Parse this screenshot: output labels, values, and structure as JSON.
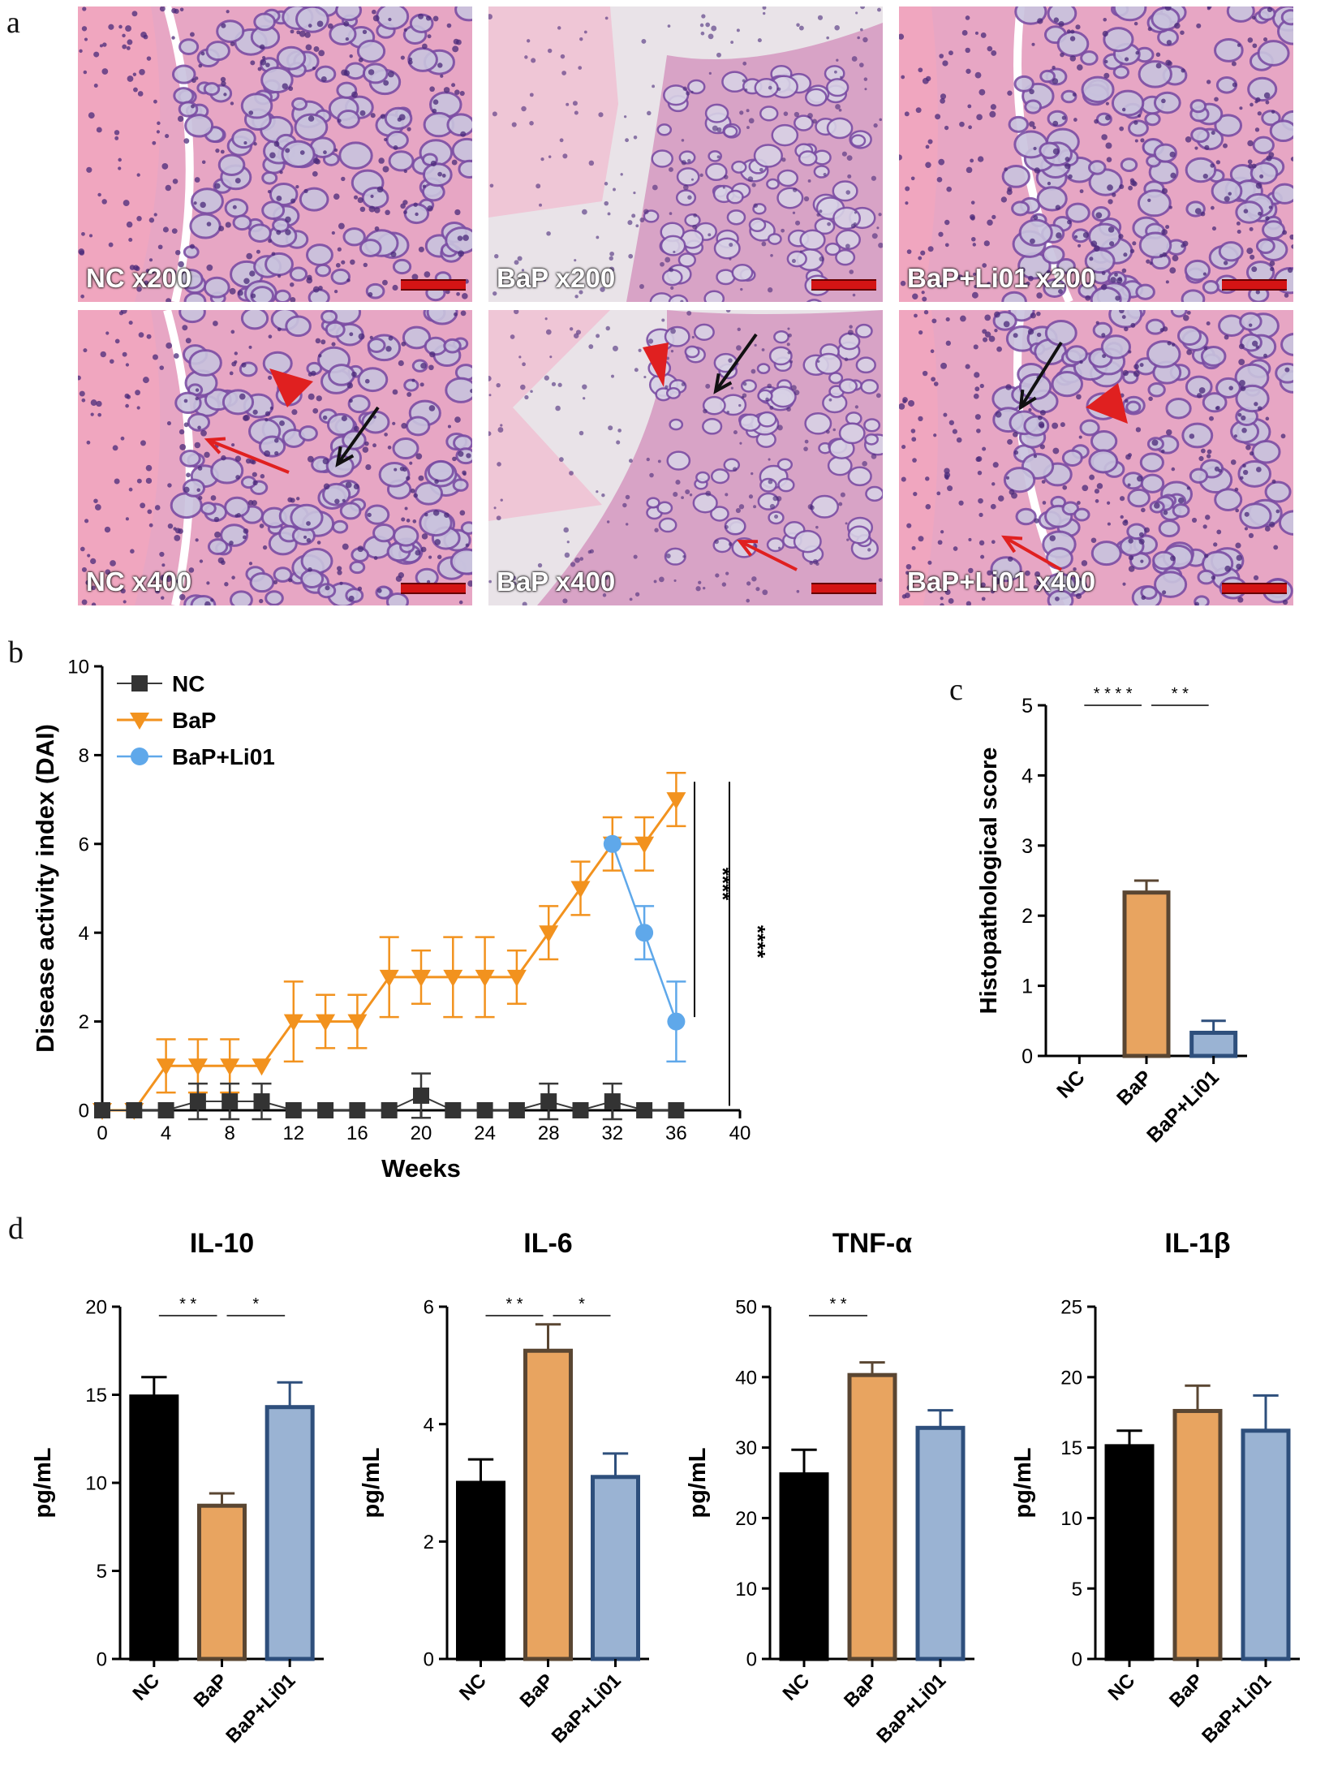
{
  "panel_labels": {
    "a": "a",
    "b": "b",
    "c": "c",
    "d": "d"
  },
  "micrographs": [
    {
      "label": "NC x200",
      "variant": "normal"
    },
    {
      "label": "BaP x200",
      "variant": "damaged"
    },
    {
      "label": "BaP+Li01 x200",
      "variant": "recovered"
    },
    {
      "label": "NC x400",
      "variant": "normal"
    },
    {
      "label": "BaP x400",
      "variant": "damaged"
    },
    {
      "label": "BaP+Li01 x400",
      "variant": "recovered"
    }
  ],
  "colors": {
    "nc": "#000000",
    "nc_line": "#3a3a3a",
    "bap": "#f2921e",
    "bap_bar": "#e8a460",
    "bap_bar_edge": "#5a4632",
    "li01": "#5fa8ea",
    "li01_bar": "#9ab3d3",
    "li01_bar_edge": "#2e4f7c",
    "arrow_red": "#e02020",
    "arrow_black": "#111111"
  },
  "chart_data": [
    {
      "id": "b",
      "type": "line",
      "xlabel": "Weeks",
      "ylabel": "Disease activity index (DAI)",
      "xlim": [
        0,
        40
      ],
      "ylim": [
        0,
        10
      ],
      "xticks": [
        0,
        4,
        8,
        12,
        16,
        20,
        24,
        28,
        32,
        36,
        40
      ],
      "yticks": [
        0,
        2,
        4,
        6,
        8,
        10
      ],
      "legend": "top-left",
      "series": [
        {
          "name": "NC",
          "marker": "square",
          "x": [
            0,
            2,
            4,
            6,
            8,
            10,
            12,
            14,
            16,
            18,
            20,
            22,
            24,
            26,
            28,
            30,
            32,
            34,
            36
          ],
          "y": [
            0,
            0,
            0,
            0.2,
            0.2,
            0.2,
            0,
            0,
            0,
            0,
            0.33,
            0,
            0,
            0,
            0.2,
            0,
            0.2,
            0,
            0
          ],
          "err": [
            0,
            0,
            0,
            0.4,
            0.4,
            0.4,
            0,
            0,
            0,
            0,
            0.5,
            0,
            0,
            0,
            0.4,
            0,
            0.4,
            0,
            0
          ]
        },
        {
          "name": "BaP",
          "marker": "triangle-down",
          "x": [
            0,
            2,
            4,
            6,
            8,
            10,
            12,
            14,
            16,
            18,
            20,
            22,
            24,
            26,
            28,
            30,
            32,
            34,
            36
          ],
          "y": [
            0,
            0,
            1,
            1,
            1,
            1,
            2,
            2,
            2,
            3,
            3,
            3,
            3,
            3,
            4,
            5,
            6,
            6,
            7
          ],
          "err": [
            0,
            0,
            0.6,
            0.6,
            0.6,
            0,
            0.9,
            0.6,
            0.6,
            0.9,
            0.6,
            0.9,
            0.9,
            0.6,
            0.6,
            0.6,
            0.6,
            0.6,
            0.6
          ]
        },
        {
          "name": "BaP+Li01",
          "marker": "circle",
          "x": [
            32,
            34,
            36
          ],
          "y": [
            6,
            4,
            2
          ],
          "err": [
            0,
            0.6,
            0.9
          ]
        }
      ],
      "annotations": [
        "****",
        "****"
      ]
    },
    {
      "id": "c",
      "type": "bar",
      "ylabel": "Histopathological score",
      "categories": [
        "NC",
        "BaP",
        "BaP+Li01"
      ],
      "values": [
        0,
        2.33,
        0.33
      ],
      "err": [
        0,
        0.17,
        0.17
      ],
      "ylim": [
        0,
        5
      ],
      "yticks": [
        0,
        1,
        2,
        3,
        4,
        5
      ],
      "significance": [
        {
          "from": 0,
          "to": 1,
          "label": "****"
        },
        {
          "from": 1,
          "to": 2,
          "label": "**"
        }
      ]
    },
    {
      "id": "d1",
      "type": "bar",
      "title": "IL-10",
      "ylabel": "pg/mL",
      "categories": [
        "NC",
        "BaP",
        "BaP+Li01"
      ],
      "values": [
        14.9,
        8.7,
        14.3
      ],
      "err": [
        1.1,
        0.7,
        1.4
      ],
      "ylim": [
        0,
        20
      ],
      "yticks": [
        0,
        5,
        10,
        15,
        20
      ],
      "significance": [
        {
          "from": 0,
          "to": 1,
          "label": "**"
        },
        {
          "from": 1,
          "to": 2,
          "label": "*"
        }
      ]
    },
    {
      "id": "d2",
      "type": "bar",
      "title": "IL-6",
      "ylabel": "pg/mL",
      "categories": [
        "NC",
        "BaP",
        "BaP+Li01"
      ],
      "values": [
        3.0,
        5.25,
        3.1
      ],
      "err": [
        0.4,
        0.45,
        0.4
      ],
      "ylim": [
        0,
        6
      ],
      "yticks": [
        0,
        2,
        4,
        6
      ],
      "significance": [
        {
          "from": 0,
          "to": 1,
          "label": "**"
        },
        {
          "from": 1,
          "to": 2,
          "label": "*"
        }
      ]
    },
    {
      "id": "d3",
      "type": "bar",
      "title": "TNF-α",
      "ylabel": "pg/mL",
      "categories": [
        "NC",
        "BaP",
        "BaP+Li01"
      ],
      "values": [
        26.2,
        40.3,
        32.8
      ],
      "err": [
        3.5,
        1.8,
        2.5
      ],
      "ylim": [
        0,
        50
      ],
      "yticks": [
        0,
        10,
        20,
        30,
        40,
        50
      ],
      "significance": [
        {
          "from": 0,
          "to": 1,
          "label": "**"
        }
      ]
    },
    {
      "id": "d4",
      "type": "bar",
      "title": "IL-1β",
      "ylabel": "pg/mL",
      "categories": [
        "NC",
        "BaP",
        "BaP+Li01"
      ],
      "values": [
        15.1,
        17.6,
        16.2
      ],
      "err": [
        1.1,
        1.8,
        2.5
      ],
      "ylim": [
        0,
        25
      ],
      "yticks": [
        0,
        5,
        10,
        15,
        20,
        25
      ],
      "significance": []
    }
  ]
}
